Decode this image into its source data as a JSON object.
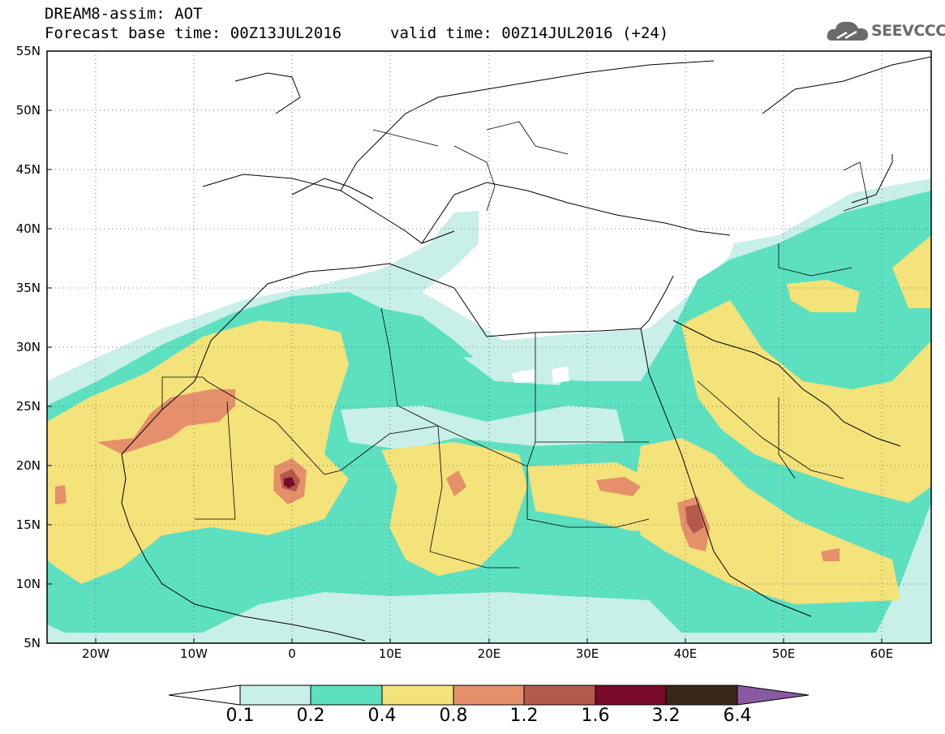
{
  "title": {
    "line1": "DREAM8-assim: AOT",
    "line2": "Forecast base time: 00Z13JUL2016",
    "valid": "valid time: 00Z14JUL2016 (+24)"
  },
  "logo": {
    "text": "SEEVCCC",
    "icon": "cloud-icon"
  },
  "map": {
    "extent": {
      "lon": [
        -25,
        65
      ],
      "lat": [
        5,
        55
      ]
    },
    "grid": "dotted",
    "lat_ticks": [
      {
        "value": 55,
        "label": "55N"
      },
      {
        "value": 50,
        "label": "50N"
      },
      {
        "value": 45,
        "label": "45N"
      },
      {
        "value": 40,
        "label": "40N"
      },
      {
        "value": 35,
        "label": "35N"
      },
      {
        "value": 30,
        "label": "30N"
      },
      {
        "value": 25,
        "label": "25N"
      },
      {
        "value": 20,
        "label": "20N"
      },
      {
        "value": 15,
        "label": "15N"
      },
      {
        "value": 10,
        "label": "10N"
      },
      {
        "value": 5,
        "label": "5N"
      }
    ],
    "lon_ticks": [
      {
        "value": -20,
        "label": "20W"
      },
      {
        "value": -10,
        "label": "10W"
      },
      {
        "value": 0,
        "label": "0"
      },
      {
        "value": 10,
        "label": "10E"
      },
      {
        "value": 20,
        "label": "20E"
      },
      {
        "value": 30,
        "label": "30E"
      },
      {
        "value": 40,
        "label": "40E"
      },
      {
        "value": 50,
        "label": "50E"
      },
      {
        "value": 60,
        "label": "60E"
      }
    ]
  },
  "colorbar": {
    "colors": [
      "#ffffff",
      "#c8efe8",
      "#5ce0c0",
      "#f4e27a",
      "#e5906a",
      "#b45a4a",
      "#7a0a2a",
      "#3a2618",
      "#8a5aa0"
    ],
    "labels": [
      "0.1",
      "0.2",
      "0.4",
      "0.8",
      "1.2",
      "1.6",
      "3.2",
      "6.4"
    ]
  }
}
